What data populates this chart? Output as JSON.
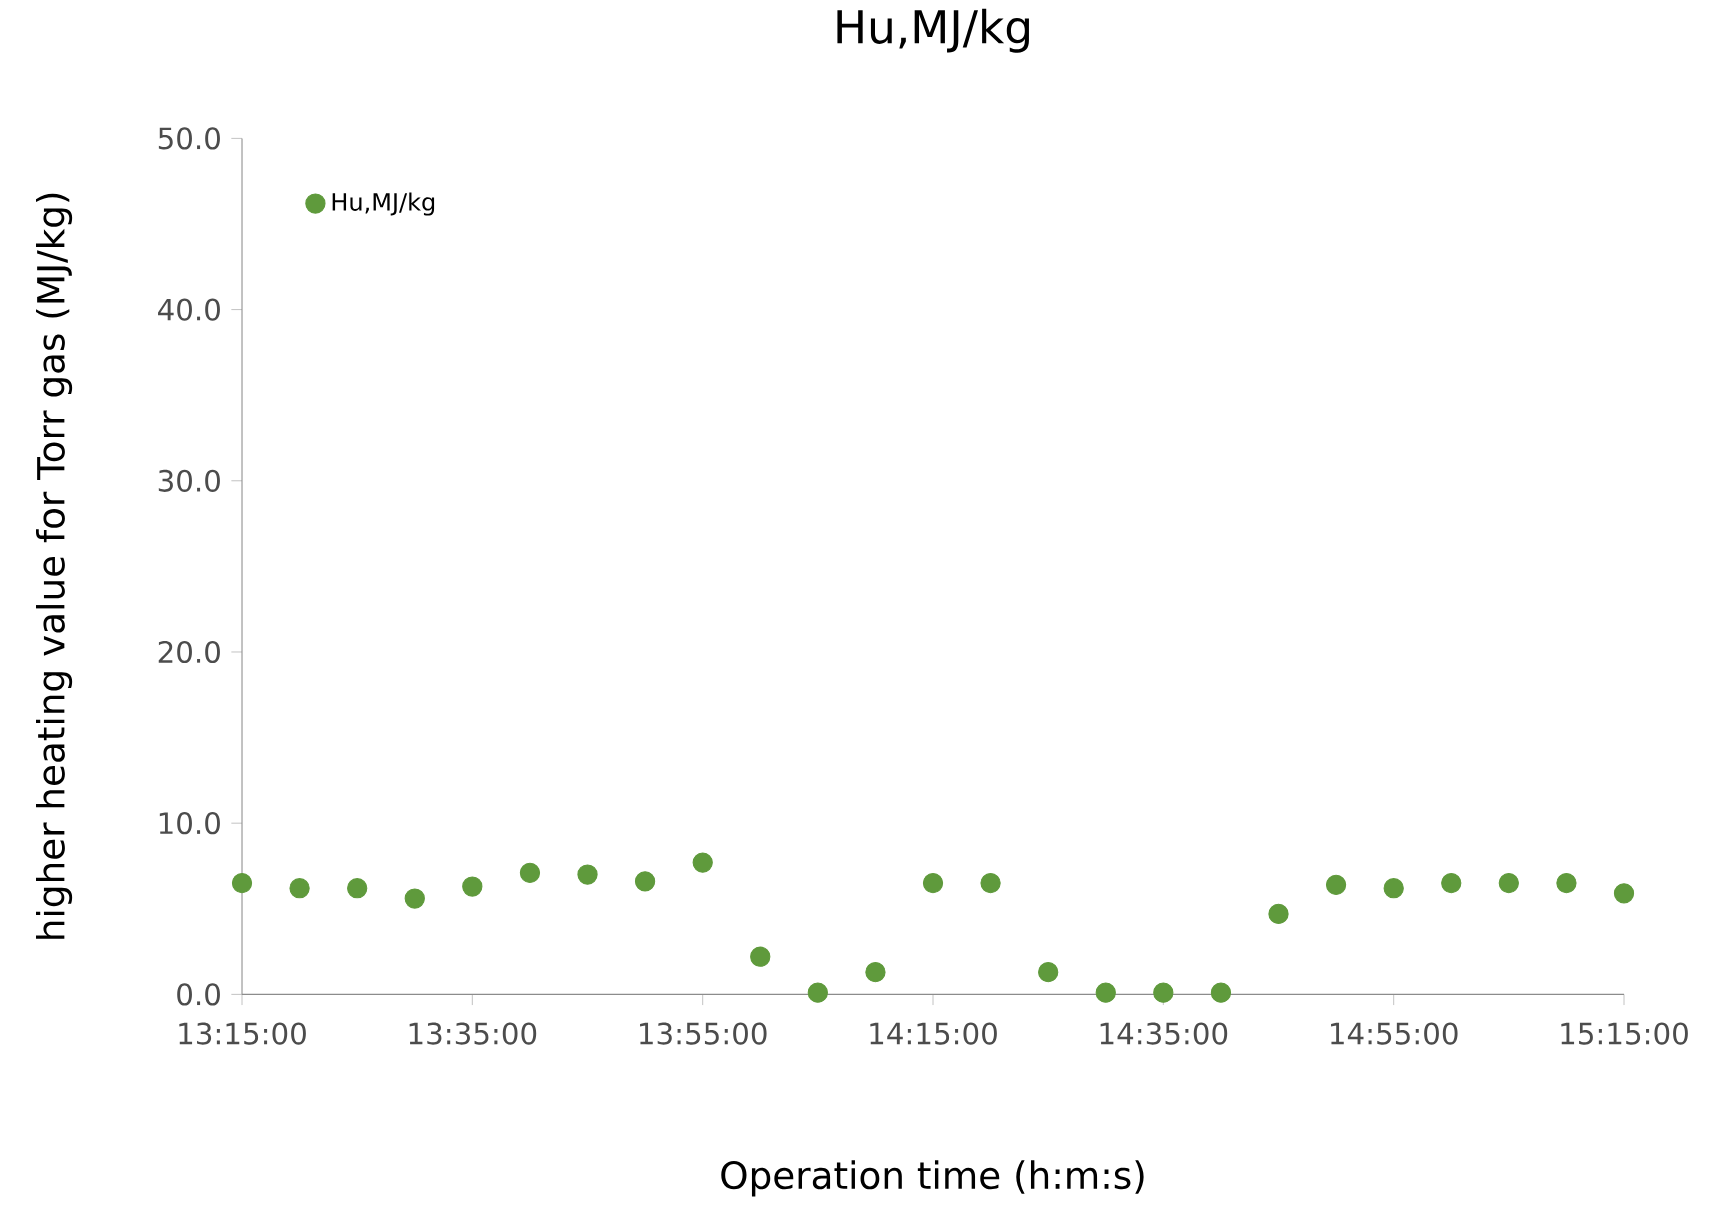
{
  "chart_data": {
    "type": "scatter",
    "title": "Hu,MJ/kg",
    "xlabel": "Operation time (h:m:s)",
    "ylabel": "higher heating value  for Torr gas (MJ/kg)",
    "x": [
      13.25,
      13.3333,
      13.4167,
      13.5,
      13.5833,
      13.6667,
      13.75,
      13.8333,
      13.9167,
      14.0,
      14.0833,
      14.1667,
      14.25,
      14.3333,
      14.4167,
      14.5,
      14.5833,
      14.6667,
      14.75,
      14.8333,
      14.9167,
      15.0,
      15.0833,
      15.1667,
      15.25
    ],
    "series": [
      {
        "name": "Hu,MJ/kg",
        "color": "#5f9a3c",
        "values": [
          6.5,
          6.2,
          6.2,
          5.6,
          6.3,
          7.1,
          7.0,
          6.6,
          7.7,
          2.2,
          0.1,
          1.3,
          6.5,
          6.5,
          1.3,
          0.1,
          0.1,
          0.1,
          4.7,
          6.4,
          6.2,
          6.5,
          6.5,
          6.5,
          5.9
        ]
      }
    ],
    "xlim": [
      13.25,
      15.25
    ],
    "xticks": [
      {
        "value": 13.25,
        "label": "13:15:00"
      },
      {
        "value": 13.5833,
        "label": "13:35:00"
      },
      {
        "value": 13.9167,
        "label": "13:55:00"
      },
      {
        "value": 14.25,
        "label": "14:15:00"
      },
      {
        "value": 14.5833,
        "label": "14:35:00"
      },
      {
        "value": 14.9167,
        "label": "14:55:00"
      },
      {
        "value": 15.25,
        "label": "15:15:00"
      }
    ],
    "ylim": [
      0,
      50
    ],
    "yticks": [
      {
        "value": 0,
        "label": "0.0"
      },
      {
        "value": 10,
        "label": "10.0"
      },
      {
        "value": 20,
        "label": "20.0"
      },
      {
        "value": 30,
        "label": "30.0"
      },
      {
        "value": 40,
        "label": "40.0"
      },
      {
        "value": 50,
        "label": "50.0"
      }
    ],
    "grid": false,
    "legend": "top left",
    "marker": "circle"
  }
}
